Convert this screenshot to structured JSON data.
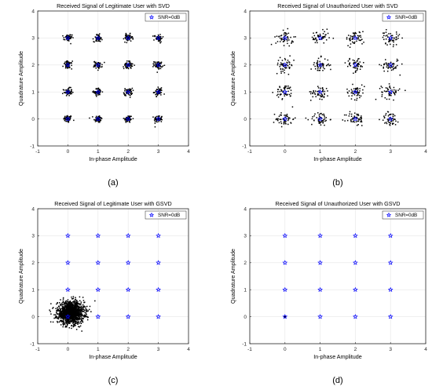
{
  "figure_labels": [
    "(a)",
    "(b)",
    "(c)",
    "(d)"
  ],
  "colors": {
    "points": "#000000",
    "legend_marker": "#0000ff",
    "axes": "#262626",
    "grid": "#e6e6e6"
  },
  "chart_data": [
    {
      "type": "scatter",
      "title": "Received Signal of Legitimate User with SVD",
      "xlabel": "In-phase Amplitude",
      "ylabel": "Quadrature Amplitude",
      "xlim": [
        -1,
        4
      ],
      "ylim": [
        -1,
        4
      ],
      "xticks": [
        -1,
        0,
        1,
        2,
        3,
        4
      ],
      "yticks": [
        -1,
        0,
        1,
        2,
        3,
        4
      ],
      "grid": true,
      "legend": {
        "label": "SNR=0dB",
        "location": "top-right",
        "marker": "star"
      },
      "constellation": [
        [
          0,
          0
        ],
        [
          1,
          0
        ],
        [
          2,
          0
        ],
        [
          3,
          0
        ],
        [
          0,
          1
        ],
        [
          1,
          1
        ],
        [
          2,
          1
        ],
        [
          3,
          1
        ],
        [
          0,
          2
        ],
        [
          1,
          2
        ],
        [
          2,
          2
        ],
        [
          3,
          2
        ],
        [
          0,
          3
        ],
        [
          1,
          3
        ],
        [
          2,
          3
        ],
        [
          3,
          3
        ]
      ],
      "noise_std": 0.07,
      "points_per_symbol": 55,
      "distribution": "clusters around each constellation point"
    },
    {
      "type": "scatter",
      "title": "Received Signal of Unauthorized User with SVD",
      "xlabel": "In-phase Amplitude",
      "ylabel": "Quadrature Amplitude",
      "xlim": [
        -1,
        4
      ],
      "ylim": [
        -1,
        4
      ],
      "xticks": [
        -1,
        0,
        1,
        2,
        3,
        4
      ],
      "yticks": [
        -1,
        0,
        1,
        2,
        3,
        4
      ],
      "grid": true,
      "legend": {
        "label": "SNR=0dB",
        "location": "top-right",
        "marker": "star"
      },
      "constellation": [
        [
          0,
          0
        ],
        [
          1,
          0
        ],
        [
          2,
          0
        ],
        [
          3,
          0
        ],
        [
          0,
          1
        ],
        [
          1,
          1
        ],
        [
          2,
          1
        ],
        [
          3,
          1
        ],
        [
          0,
          2
        ],
        [
          1,
          2
        ],
        [
          2,
          2
        ],
        [
          3,
          2
        ],
        [
          0,
          3
        ],
        [
          1,
          3
        ],
        [
          2,
          3
        ],
        [
          3,
          3
        ]
      ],
      "noise_std": 0.13,
      "points_per_symbol": 50,
      "distribution": "clusters around each constellation point"
    },
    {
      "type": "scatter",
      "title": "Received Signal of Legitimate User with GSVD",
      "xlabel": "In-phase Amplitude",
      "ylabel": "Quadrature Amplitude",
      "xlim": [
        -1,
        4
      ],
      "ylim": [
        -1,
        4
      ],
      "xticks": [
        -1,
        0,
        1,
        2,
        3,
        4
      ],
      "yticks": [
        -1,
        0,
        1,
        2,
        3,
        4
      ],
      "grid": true,
      "legend": {
        "label": "SNR=0dB",
        "location": "top-right",
        "marker": "star"
      },
      "constellation": [
        [
          0,
          0
        ],
        [
          1,
          0
        ],
        [
          2,
          0
        ],
        [
          3,
          0
        ],
        [
          0,
          1
        ],
        [
          1,
          1
        ],
        [
          2,
          1
        ],
        [
          3,
          1
        ],
        [
          0,
          2
        ],
        [
          1,
          2
        ],
        [
          2,
          2
        ],
        [
          3,
          2
        ],
        [
          0,
          3
        ],
        [
          1,
          3
        ],
        [
          2,
          3
        ],
        [
          3,
          3
        ]
      ],
      "cloud_center": [
        0.1,
        0.15
      ],
      "cloud_std": [
        0.22,
        0.2
      ],
      "cloud_points": 1400,
      "distribution": "single cloud near origin"
    },
    {
      "type": "scatter",
      "title": "Received Signal of Unauthorized User with GSVD",
      "xlabel": "In-phase Amplitude",
      "ylabel": "Quadrature Amplitude",
      "xlim": [
        -1,
        4
      ],
      "ylim": [
        -1,
        4
      ],
      "xticks": [
        -1,
        0,
        1,
        2,
        3,
        4
      ],
      "yticks": [
        -1,
        0,
        1,
        2,
        3,
        4
      ],
      "grid": true,
      "legend": {
        "label": "SNR=0dB",
        "location": "top-right",
        "marker": "star"
      },
      "constellation": [
        [
          0,
          0
        ],
        [
          1,
          0
        ],
        [
          2,
          0
        ],
        [
          3,
          0
        ],
        [
          0,
          1
        ],
        [
          1,
          1
        ],
        [
          2,
          1
        ],
        [
          3,
          1
        ],
        [
          0,
          2
        ],
        [
          1,
          2
        ],
        [
          2,
          2
        ],
        [
          3,
          2
        ],
        [
          0,
          3
        ],
        [
          1,
          3
        ],
        [
          2,
          3
        ],
        [
          3,
          3
        ]
      ],
      "cloud_center": [
        0,
        0
      ],
      "cloud_std": [
        0.005,
        0.005
      ],
      "cloud_points": 30,
      "distribution": "collapsed to origin"
    }
  ]
}
